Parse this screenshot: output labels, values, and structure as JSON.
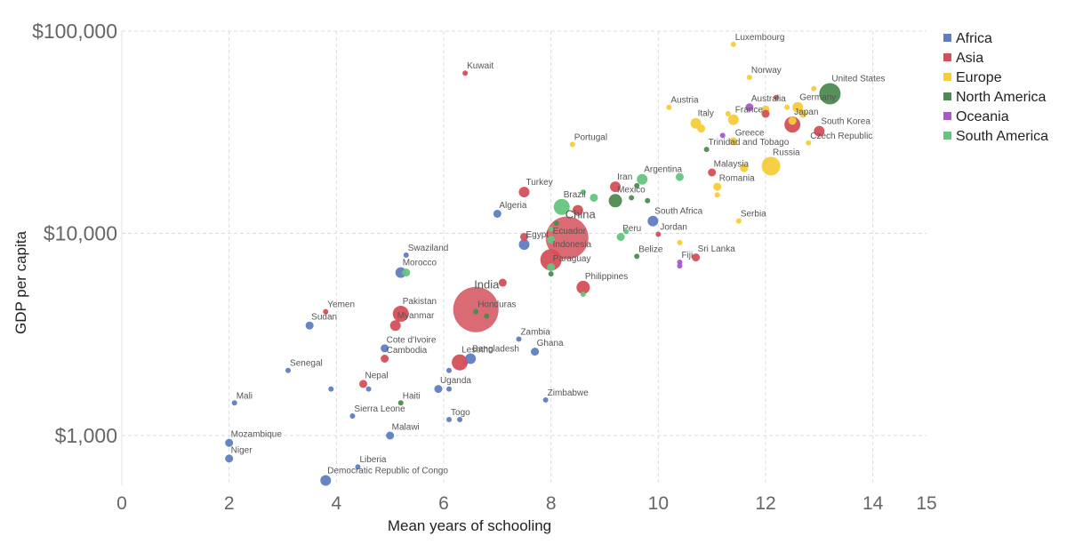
{
  "chart_data": {
    "type": "scatter",
    "xlabel": "Mean years of schooling",
    "ylabel": "GDP per capita",
    "xlim": [
      0,
      15
    ],
    "ylim": [
      600,
      110000
    ],
    "y_scale": "log",
    "grid": true,
    "legend_position": "top-right",
    "x_ticks": [
      "0",
      "2",
      "4",
      "6",
      "8",
      "10",
      "12",
      "14",
      "15"
    ],
    "y_ticks": [
      {
        "value": 1000,
        "label": "$1,000"
      },
      {
        "value": 10000,
        "label": "$10,000"
      },
      {
        "value": 100000,
        "label": "$100,000"
      }
    ],
    "colors": {
      "Africa": "#5f7ec0",
      "Asia": "#d4505a",
      "Europe": "#f5cc3a",
      "North America": "#4e8a52",
      "Oceania": "#a55bc9",
      "South America": "#66c47e"
    },
    "legend": [
      "Africa",
      "Asia",
      "Europe",
      "North America",
      "Oceania",
      "South America"
    ],
    "points": [
      {
        "label": "Luxembourg",
        "x": 11.4,
        "y": 86000,
        "region": "Europe",
        "size": 2
      },
      {
        "label": "Kuwait",
        "x": 6.4,
        "y": 62000,
        "region": "Asia",
        "size": 2
      },
      {
        "label": "Norway",
        "x": 11.7,
        "y": 59000,
        "region": "Europe",
        "size": 2
      },
      {
        "label": "",
        "x": 12.9,
        "y": 52000,
        "region": "Europe",
        "size": 2
      },
      {
        "label": "United States",
        "x": 13.2,
        "y": 49000,
        "region": "North America",
        "size": 8
      },
      {
        "label": "",
        "x": 12.2,
        "y": 47000,
        "region": "Asia",
        "size": 2
      },
      {
        "label": "Austria",
        "x": 10.2,
        "y": 42000,
        "region": "Europe",
        "size": 2
      },
      {
        "label": "Australia",
        "x": 11.7,
        "y": 42000,
        "region": "Oceania",
        "size": 3
      },
      {
        "label": "Germany",
        "x": 12.6,
        "y": 42000,
        "region": "Europe",
        "size": 4
      },
      {
        "label": "",
        "x": 12.0,
        "y": 41000,
        "region": "Europe",
        "size": 3
      },
      {
        "label": "",
        "x": 12.4,
        "y": 42000,
        "region": "Europe",
        "size": 2
      },
      {
        "label": "",
        "x": 12.7,
        "y": 39000,
        "region": "Europe",
        "size": 3
      },
      {
        "label": "",
        "x": 12.0,
        "y": 39000,
        "region": "Asia",
        "size": 3
      },
      {
        "label": "",
        "x": 11.3,
        "y": 39000,
        "region": "Europe",
        "size": 2
      },
      {
        "label": "France",
        "x": 11.4,
        "y": 36500,
        "region": "Europe",
        "size": 4
      },
      {
        "label": "Italy",
        "x": 10.7,
        "y": 35000,
        "region": "Europe",
        "size": 4
      },
      {
        "label": "",
        "x": 10.8,
        "y": 33000,
        "region": "Europe",
        "size": 3
      },
      {
        "label": "Japan",
        "x": 12.5,
        "y": 34500,
        "region": "Asia",
        "size": 6
      },
      {
        "label": "",
        "x": 12.5,
        "y": 36000,
        "region": "Europe",
        "size": 3
      },
      {
        "label": "South Korea",
        "x": 13.0,
        "y": 32000,
        "region": "Asia",
        "size": 4
      },
      {
        "label": "",
        "x": 11.2,
        "y": 30500,
        "region": "Oceania",
        "size": 2
      },
      {
        "label": "Greece",
        "x": 11.4,
        "y": 28500,
        "region": "Europe",
        "size": 3
      },
      {
        "label": "Czech Republic",
        "x": 12.8,
        "y": 28000,
        "region": "Europe",
        "size": 2
      },
      {
        "label": "Portugal",
        "x": 8.4,
        "y": 27500,
        "region": "Europe",
        "size": 2
      },
      {
        "label": "Trinidad and Tobago",
        "x": 10.9,
        "y": 26000,
        "region": "North America",
        "size": 2
      },
      {
        "label": "Russia",
        "x": 12.1,
        "y": 21500,
        "region": "Europe",
        "size": 7
      },
      {
        "label": "",
        "x": 12.0,
        "y": 22500,
        "region": "Europe",
        "size": 2
      },
      {
        "label": "Malaysia",
        "x": 11.0,
        "y": 20000,
        "region": "Asia",
        "size": 3
      },
      {
        "label": "",
        "x": 11.6,
        "y": 21000,
        "region": "Europe",
        "size": 3
      },
      {
        "label": "Argentina",
        "x": 9.7,
        "y": 18500,
        "region": "South America",
        "size": 4
      },
      {
        "label": "",
        "x": 10.4,
        "y": 19000,
        "region": "South America",
        "size": 3
      },
      {
        "label": "Iran",
        "x": 9.2,
        "y": 17000,
        "region": "Asia",
        "size": 4
      },
      {
        "label": "",
        "x": 9.6,
        "y": 17200,
        "region": "North America",
        "size": 2
      },
      {
        "label": "Romania",
        "x": 11.1,
        "y": 17000,
        "region": "Europe",
        "size": 3
      },
      {
        "label": "Turkey",
        "x": 7.5,
        "y": 16000,
        "region": "Asia",
        "size": 4
      },
      {
        "label": "",
        "x": 8.6,
        "y": 16000,
        "region": "South America",
        "size": 2
      },
      {
        "label": "Mexico",
        "x": 9.2,
        "y": 14500,
        "region": "North America",
        "size": 5
      },
      {
        "label": "",
        "x": 9.5,
        "y": 15000,
        "region": "North America",
        "size": 2
      },
      {
        "label": "",
        "x": 8.8,
        "y": 15000,
        "region": "South America",
        "size": 3
      },
      {
        "label": "",
        "x": 9.8,
        "y": 14500,
        "region": "North America",
        "size": 2
      },
      {
        "label": "",
        "x": 11.1,
        "y": 15500,
        "region": "Europe",
        "size": 2
      },
      {
        "label": "Brazil",
        "x": 8.2,
        "y": 13500,
        "region": "South America",
        "size": 6
      },
      {
        "label": "",
        "x": 8.5,
        "y": 13000,
        "region": "Asia",
        "size": 4
      },
      {
        "label": "Algeria",
        "x": 7.0,
        "y": 12500,
        "region": "Africa",
        "size": 3
      },
      {
        "label": "China",
        "x": 8.3,
        "y": 9500,
        "region": "Asia",
        "size": 16
      },
      {
        "label": "South Africa",
        "x": 9.9,
        "y": 11500,
        "region": "Africa",
        "size": 4
      },
      {
        "label": "Serbia",
        "x": 11.5,
        "y": 11500,
        "region": "Europe",
        "size": 2
      },
      {
        "label": "",
        "x": 8.1,
        "y": 11200,
        "region": "North America",
        "size": 2
      },
      {
        "label": "",
        "x": 8.0,
        "y": 10500,
        "region": "South America",
        "size": 2
      },
      {
        "label": "Peru",
        "x": 9.3,
        "y": 9600,
        "region": "South America",
        "size": 3
      },
      {
        "label": "",
        "x": 9.4,
        "y": 10200,
        "region": "South America",
        "size": 2
      },
      {
        "label": "Jordan",
        "x": 10.0,
        "y": 9900,
        "region": "Asia",
        "size": 2
      },
      {
        "label": "",
        "x": 10.4,
        "y": 9000,
        "region": "Europe",
        "size": 2
      },
      {
        "label": "Egypt",
        "x": 7.5,
        "y": 8800,
        "region": "Africa",
        "size": 4
      },
      {
        "label": "",
        "x": 7.5,
        "y": 9600,
        "region": "Asia",
        "size": 3
      },
      {
        "label": "Ecuador",
        "x": 8.0,
        "y": 9300,
        "region": "South America",
        "size": 3
      },
      {
        "label": "Swaziland",
        "x": 5.3,
        "y": 7800,
        "region": "Africa",
        "size": 2
      },
      {
        "label": "Indonesia",
        "x": 8.0,
        "y": 7400,
        "region": "Asia",
        "size": 8
      },
      {
        "label": "Belize",
        "x": 9.6,
        "y": 7700,
        "region": "North America",
        "size": 2
      },
      {
        "label": "Sri Lanka",
        "x": 10.7,
        "y": 7600,
        "region": "Asia",
        "size": 3
      },
      {
        "label": "Fiji",
        "x": 10.4,
        "y": 7200,
        "region": "Oceania",
        "size": 2
      },
      {
        "label": "",
        "x": 10.4,
        "y": 6900,
        "region": "Oceania",
        "size": 2
      },
      {
        "label": "Paraguay",
        "x": 8.0,
        "y": 6800,
        "region": "South America",
        "size": 3
      },
      {
        "label": "Morocco",
        "x": 5.2,
        "y": 6400,
        "region": "Africa",
        "size": 4
      },
      {
        "label": "",
        "x": 5.3,
        "y": 6400,
        "region": "South America",
        "size": 3
      },
      {
        "label": "",
        "x": 8.0,
        "y": 6300,
        "region": "North America",
        "size": 2
      },
      {
        "label": "",
        "x": 7.1,
        "y": 5700,
        "region": "Asia",
        "size": 3
      },
      {
        "label": "Philippines",
        "x": 8.6,
        "y": 5400,
        "region": "Asia",
        "size": 5
      },
      {
        "label": "",
        "x": 8.6,
        "y": 5000,
        "region": "South America",
        "size": 2
      },
      {
        "label": "India",
        "x": 6.6,
        "y": 4200,
        "region": "Asia",
        "size": 17
      },
      {
        "label": "Honduras",
        "x": 6.6,
        "y": 4100,
        "region": "North America",
        "size": 2
      },
      {
        "label": "",
        "x": 6.8,
        "y": 3900,
        "region": "North America",
        "size": 2
      },
      {
        "label": "Pakistan",
        "x": 5.2,
        "y": 4000,
        "region": "Asia",
        "size": 6
      },
      {
        "label": "Yemen",
        "x": 3.8,
        "y": 4100,
        "region": "Asia",
        "size": 2
      },
      {
        "label": "Myanmar",
        "x": 5.1,
        "y": 3500,
        "region": "Asia",
        "size": 4
      },
      {
        "label": "Sudan",
        "x": 3.5,
        "y": 3500,
        "region": "Africa",
        "size": 3
      },
      {
        "label": "Zambia",
        "x": 7.4,
        "y": 3000,
        "region": "Africa",
        "size": 2
      },
      {
        "label": "Ghana",
        "x": 7.7,
        "y": 2600,
        "region": "Africa",
        "size": 3
      },
      {
        "label": "Cote d'Ivoire",
        "x": 4.9,
        "y": 2700,
        "region": "Africa",
        "size": 3
      },
      {
        "label": "Cambodia",
        "x": 4.9,
        "y": 2400,
        "region": "Asia",
        "size": 3
      },
      {
        "label": "Bangladesh",
        "x": 6.5,
        "y": 2400,
        "region": "Africa",
        "size": 4
      },
      {
        "label": "",
        "x": 6.4,
        "y": 2300,
        "region": "Asia",
        "size": 2
      },
      {
        "label": "Lesotho",
        "x": 6.3,
        "y": 2300,
        "region": "Asia",
        "size": 6
      },
      {
        "label": "",
        "x": 6.1,
        "y": 2100,
        "region": "Africa",
        "size": 2
      },
      {
        "label": "Senegal",
        "x": 3.1,
        "y": 2100,
        "region": "Africa",
        "size": 2
      },
      {
        "label": "Nepal",
        "x": 4.5,
        "y": 1800,
        "region": "Asia",
        "size": 3
      },
      {
        "label": "",
        "x": 4.6,
        "y": 1700,
        "region": "Africa",
        "size": 2
      },
      {
        "label": "",
        "x": 3.9,
        "y": 1700,
        "region": "Africa",
        "size": 2
      },
      {
        "label": "Uganda",
        "x": 5.9,
        "y": 1700,
        "region": "Africa",
        "size": 3
      },
      {
        "label": "",
        "x": 6.1,
        "y": 1700,
        "region": "Africa",
        "size": 2
      },
      {
        "label": "Zimbabwe",
        "x": 7.9,
        "y": 1500,
        "region": "Africa",
        "size": 2
      },
      {
        "label": "Haiti",
        "x": 5.2,
        "y": 1450,
        "region": "North America",
        "size": 2
      },
      {
        "label": "Mali",
        "x": 2.1,
        "y": 1450,
        "region": "Africa",
        "size": 2
      },
      {
        "label": "Sierra Leone",
        "x": 4.3,
        "y": 1250,
        "region": "Africa",
        "size": 2
      },
      {
        "label": "Togo",
        "x": 6.1,
        "y": 1200,
        "region": "Africa",
        "size": 2
      },
      {
        "label": "",
        "x": 6.3,
        "y": 1200,
        "region": "Africa",
        "size": 2
      },
      {
        "label": "Malawi",
        "x": 5.0,
        "y": 1000,
        "region": "Africa",
        "size": 3
      },
      {
        "label": "Mozambique",
        "x": 2.0,
        "y": 920,
        "region": "Africa",
        "size": 3
      },
      {
        "label": "Niger",
        "x": 2.0,
        "y": 770,
        "region": "Africa",
        "size": 3
      },
      {
        "label": "Liberia",
        "x": 4.4,
        "y": 700,
        "region": "Africa",
        "size": 2
      },
      {
        "label": "Democratic Republic of Congo",
        "x": 3.8,
        "y": 600,
        "region": "Africa",
        "size": 4
      }
    ]
  }
}
